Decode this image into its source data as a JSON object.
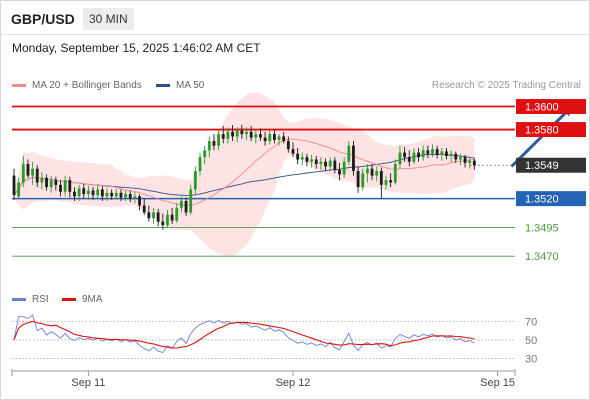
{
  "header": {
    "symbol": "GBP/USD",
    "timeframe": "30 MIN"
  },
  "datetime": "Monday, September 15, 2025 1:46:02 AM CET",
  "legend": {
    "ma20_label": "MA 20 + Bollinger Bands",
    "ma50_label": "MA 50",
    "ma20_color": "#f08a8a",
    "ma50_color": "#2c4f87"
  },
  "credit": "Research © 2025 Trading Central",
  "rsi_legend": {
    "rsi_label": "RSI",
    "ma_label": "9MA",
    "rsi_color": "#6b7fd6",
    "ma_color": "#dd1111"
  },
  "colors": {
    "resistance": "#dd1111",
    "pivot": "#2563b5",
    "support": "#4d9a3e",
    "last": "#333333",
    "candle_up": "#2a9a2a",
    "candle_down": "#1b1b1b",
    "band": "#fcdada"
  },
  "chart_data": {
    "type": "candlestick",
    "price_axis": {
      "ymin": 1.3445,
      "ymax": 1.361
    },
    "levels": [
      {
        "label": "1.3600",
        "value": 1.36,
        "kind": "resistance"
      },
      {
        "label": "1.3580",
        "value": 1.358,
        "kind": "resistance"
      },
      {
        "label": "1.3549",
        "value": 1.3549,
        "kind": "last"
      },
      {
        "label": "1.3520",
        "value": 1.352,
        "kind": "pivot"
      },
      {
        "label": "1.3495",
        "value": 1.3495,
        "kind": "support"
      },
      {
        "label": "1.3470",
        "value": 1.347,
        "kind": "support"
      }
    ],
    "x_ticks": [
      "Sep 11",
      "Sep 12",
      "Sep 15"
    ],
    "x_tick_index": [
      16,
      60,
      104
    ],
    "target_arrow": {
      "from_index": 107,
      "from": 1.3548,
      "to_index": 120,
      "to": 1.36
    },
    "candles": [
      [
        1.354,
        1.3546,
        1.3519,
        1.3523
      ],
      [
        1.3522,
        1.3538,
        1.352,
        1.3534
      ],
      [
        1.3534,
        1.3557,
        1.353,
        1.355
      ],
      [
        1.355,
        1.3554,
        1.3538,
        1.354
      ],
      [
        1.354,
        1.3552,
        1.3532,
        1.3546
      ],
      [
        1.3546,
        1.3549,
        1.353,
        1.3534
      ],
      [
        1.3534,
        1.3543,
        1.3528,
        1.3538
      ],
      [
        1.3538,
        1.3541,
        1.3527,
        1.353
      ],
      [
        1.353,
        1.354,
        1.3525,
        1.3536
      ],
      [
        1.3536,
        1.3539,
        1.3527,
        1.3532
      ],
      [
        1.3532,
        1.3536,
        1.3522,
        1.3526
      ],
      [
        1.3526,
        1.354,
        1.3522,
        1.3536
      ],
      [
        1.3536,
        1.3539,
        1.3521,
        1.3526
      ],
      [
        1.3526,
        1.353,
        1.3518,
        1.3522
      ],
      [
        1.3522,
        1.3532,
        1.3518,
        1.3529
      ],
      [
        1.3529,
        1.3533,
        1.352,
        1.3524
      ],
      [
        1.3524,
        1.3531,
        1.3519,
        1.3527
      ],
      [
        1.3527,
        1.353,
        1.3519,
        1.3523
      ],
      [
        1.3523,
        1.3533,
        1.352,
        1.3528
      ],
      [
        1.3528,
        1.3531,
        1.3518,
        1.3522
      ],
      [
        1.3522,
        1.3529,
        1.3518,
        1.3525
      ],
      [
        1.3525,
        1.3528,
        1.3519,
        1.3522
      ],
      [
        1.3522,
        1.3528,
        1.3519,
        1.3525
      ],
      [
        1.3525,
        1.3528,
        1.3518,
        1.3521
      ],
      [
        1.3521,
        1.3527,
        1.3518,
        1.3524
      ],
      [
        1.3524,
        1.3527,
        1.3517,
        1.352
      ],
      [
        1.352,
        1.3526,
        1.3516,
        1.3522
      ],
      [
        1.3522,
        1.3524,
        1.351,
        1.3514
      ],
      [
        1.3514,
        1.352,
        1.3506,
        1.3508
      ],
      [
        1.3508,
        1.3514,
        1.35,
        1.3503
      ],
      [
        1.3503,
        1.3512,
        1.3498,
        1.3508
      ],
      [
        1.3508,
        1.3511,
        1.3496,
        1.35
      ],
      [
        1.35,
        1.3507,
        1.3493,
        1.3497
      ],
      [
        1.3497,
        1.351,
        1.3495,
        1.3506
      ],
      [
        1.3506,
        1.3512,
        1.3498,
        1.3501
      ],
      [
        1.3501,
        1.3516,
        1.3499,
        1.3512
      ],
      [
        1.3512,
        1.3522,
        1.3508,
        1.3518
      ],
      [
        1.3518,
        1.3521,
        1.3505,
        1.3508
      ],
      [
        1.3508,
        1.3532,
        1.3506,
        1.3528
      ],
      [
        1.3528,
        1.3548,
        1.3524,
        1.3544
      ],
      [
        1.3544,
        1.356,
        1.354,
        1.3556
      ],
      [
        1.3556,
        1.3566,
        1.355,
        1.3562
      ],
      [
        1.3562,
        1.3574,
        1.3556,
        1.357
      ],
      [
        1.357,
        1.3576,
        1.3562,
        1.3566
      ],
      [
        1.3566,
        1.358,
        1.3562,
        1.3576
      ],
      [
        1.3576,
        1.3583,
        1.3568,
        1.3572
      ],
      [
        1.3572,
        1.3582,
        1.3568,
        1.3578
      ],
      [
        1.3578,
        1.3584,
        1.357,
        1.3574
      ],
      [
        1.3574,
        1.3582,
        1.3569,
        1.3579
      ],
      [
        1.3579,
        1.3584,
        1.3572,
        1.3576
      ],
      [
        1.3576,
        1.3582,
        1.3571,
        1.3578
      ],
      [
        1.3578,
        1.3583,
        1.357,
        1.3573
      ],
      [
        1.3573,
        1.358,
        1.3568,
        1.3576
      ],
      [
        1.3576,
        1.3581,
        1.357,
        1.3573
      ],
      [
        1.3573,
        1.3578,
        1.3566,
        1.357
      ],
      [
        1.357,
        1.3579,
        1.3567,
        1.3576
      ],
      [
        1.3576,
        1.358,
        1.3568,
        1.3571
      ],
      [
        1.3571,
        1.3576,
        1.3566,
        1.3574
      ],
      [
        1.3574,
        1.3578,
        1.3568,
        1.357
      ],
      [
        1.357,
        1.3574,
        1.356,
        1.3563
      ],
      [
        1.3563,
        1.3569,
        1.3556,
        1.3559
      ],
      [
        1.3559,
        1.3564,
        1.355,
        1.3554
      ],
      [
        1.3554,
        1.356,
        1.3549,
        1.3556
      ],
      [
        1.3556,
        1.3559,
        1.3548,
        1.3552
      ],
      [
        1.3552,
        1.3558,
        1.3547,
        1.3554
      ],
      [
        1.3554,
        1.3557,
        1.3546,
        1.355
      ],
      [
        1.355,
        1.3556,
        1.3545,
        1.3552
      ],
      [
        1.3552,
        1.3555,
        1.3544,
        1.3548
      ],
      [
        1.3548,
        1.3556,
        1.3545,
        1.3553
      ],
      [
        1.3553,
        1.3556,
        1.3542,
        1.3545
      ],
      [
        1.3545,
        1.3551,
        1.3536,
        1.3541
      ],
      [
        1.3541,
        1.3556,
        1.3538,
        1.3552
      ],
      [
        1.3552,
        1.357,
        1.3549,
        1.3566
      ],
      [
        1.3566,
        1.357,
        1.354,
        1.3544
      ],
      [
        1.3544,
        1.3548,
        1.3525,
        1.353
      ],
      [
        1.353,
        1.3546,
        1.3527,
        1.3542
      ],
      [
        1.3542,
        1.355,
        1.3534,
        1.3546
      ],
      [
        1.3546,
        1.355,
        1.3536,
        1.354
      ],
      [
        1.354,
        1.3548,
        1.3535,
        1.3544
      ],
      [
        1.3544,
        1.3547,
        1.352,
        1.3532
      ],
      [
        1.3532,
        1.354,
        1.3528,
        1.3536
      ],
      [
        1.3536,
        1.3542,
        1.353,
        1.3534
      ],
      [
        1.3534,
        1.3554,
        1.3532,
        1.355
      ],
      [
        1.355,
        1.3566,
        1.3546,
        1.356
      ],
      [
        1.356,
        1.3565,
        1.3552,
        1.3556
      ],
      [
        1.3556,
        1.3562,
        1.3548,
        1.3552
      ],
      [
        1.3552,
        1.3564,
        1.355,
        1.356
      ],
      [
        1.356,
        1.3564,
        1.3552,
        1.3556
      ],
      [
        1.3556,
        1.3566,
        1.3553,
        1.3562
      ],
      [
        1.3562,
        1.3566,
        1.3555,
        1.3559
      ],
      [
        1.3559,
        1.3567,
        1.3556,
        1.3563
      ],
      [
        1.3563,
        1.3566,
        1.3555,
        1.3558
      ],
      [
        1.3558,
        1.3564,
        1.3553,
        1.3561
      ],
      [
        1.3561,
        1.3564,
        1.3554,
        1.3557
      ],
      [
        1.3557,
        1.3562,
        1.3552,
        1.3559
      ],
      [
        1.3559,
        1.3561,
        1.3551,
        1.3554
      ],
      [
        1.3554,
        1.3559,
        1.3549,
        1.3556
      ],
      [
        1.3556,
        1.3558,
        1.3547,
        1.3551
      ],
      [
        1.3551,
        1.3556,
        1.3546,
        1.3553
      ],
      [
        1.3553,
        1.3555,
        1.3545,
        1.3549
      ]
    ]
  },
  "rsi": {
    "axis_labels": [
      "70",
      "50",
      "30"
    ],
    "levels": [
      70,
      50,
      30
    ],
    "ymin": 22,
    "ymax": 80
  }
}
